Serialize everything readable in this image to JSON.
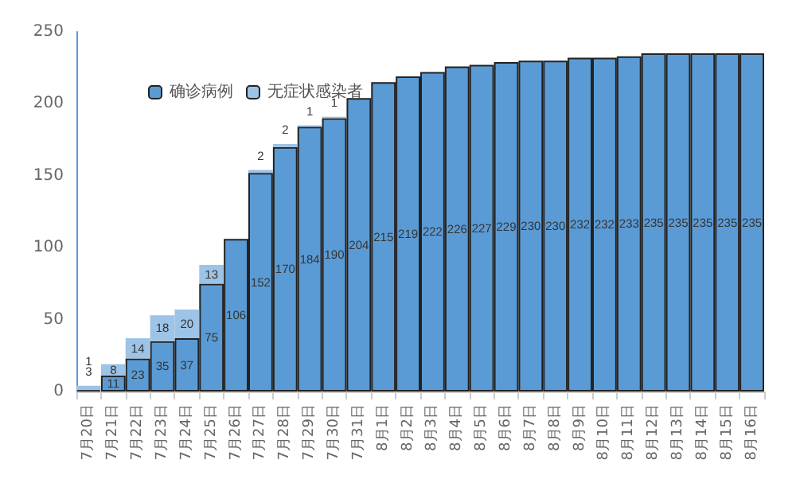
{
  "chart_data": {
    "type": "bar",
    "stacked": true,
    "categories": [
      "7月20日",
      "7月21日",
      "7月22日",
      "7月23日",
      "7月24日",
      "7月25日",
      "7月26日",
      "7月27日",
      "7月28日",
      "7月29日",
      "7月30日",
      "7月31日",
      "8月1日",
      "8月2日",
      "8月3日",
      "8月4日",
      "8月5日",
      "8月6日",
      "8月7日",
      "8月8日",
      "8月9日",
      "8月10日",
      "8月11日",
      "8月12日",
      "8月13日",
      "8月14日",
      "8月15日",
      "8月16日"
    ],
    "series": [
      {
        "name": "确诊病例",
        "color": "#5b9bd5",
        "values": [
          1,
          11,
          23,
          35,
          37,
          75,
          106,
          152,
          170,
          184,
          190,
          204,
          215,
          219,
          222,
          226,
          227,
          229,
          230,
          230,
          232,
          232,
          233,
          235,
          235,
          235,
          235,
          235
        ]
      },
      {
        "name": "无症状感染者",
        "color": "#9dc3e6",
        "values": [
          3,
          8,
          14,
          18,
          20,
          13,
          null,
          2,
          2,
          1,
          1,
          null,
          null,
          null,
          null,
          null,
          null,
          null,
          null,
          null,
          null,
          null,
          null,
          null,
          null,
          null,
          null,
          null
        ]
      }
    ],
    "ylim": [
      0,
      250
    ],
    "yticks": [
      0,
      50,
      100,
      150,
      200,
      250
    ],
    "data_labels": true,
    "legend": "top left",
    "grid": false
  }
}
